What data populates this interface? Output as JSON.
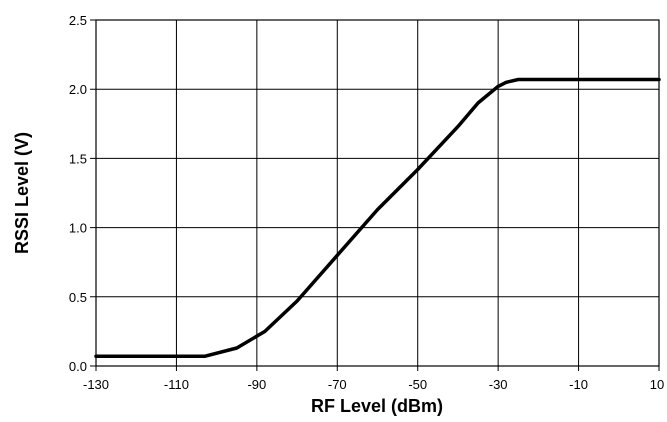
{
  "chart_data": {
    "type": "line",
    "title": "",
    "xlabel": "RF Level (dBm)",
    "ylabel": "RSSI Level (V)",
    "xlim": [
      -130,
      10
    ],
    "ylim": [
      0.0,
      2.5
    ],
    "x_ticks": [
      -130,
      -110,
      -90,
      -70,
      -50,
      -30,
      -10,
      10
    ],
    "x_tick_labels": [
      "-130",
      "-110",
      "-90",
      "-70",
      "-50",
      "-30",
      "-10",
      "10"
    ],
    "y_ticks": [
      0.0,
      0.5,
      1.0,
      1.5,
      2.0,
      2.5
    ],
    "y_tick_labels": [
      "0.0",
      "0.5",
      "1.0",
      "1.5",
      "2.0",
      "2.5"
    ],
    "grid": true,
    "legend": "none",
    "series": [
      {
        "color": "#000000",
        "x": [
          -130,
          -103,
          -95,
          -88,
          -80,
          -70,
          -60,
          -50,
          -40,
          -35,
          -30,
          -28,
          -25,
          10
        ],
        "y": [
          0.07,
          0.07,
          0.13,
          0.25,
          0.47,
          0.8,
          1.13,
          1.42,
          1.73,
          1.9,
          2.02,
          2.05,
          2.07,
          2.07
        ]
      }
    ]
  }
}
